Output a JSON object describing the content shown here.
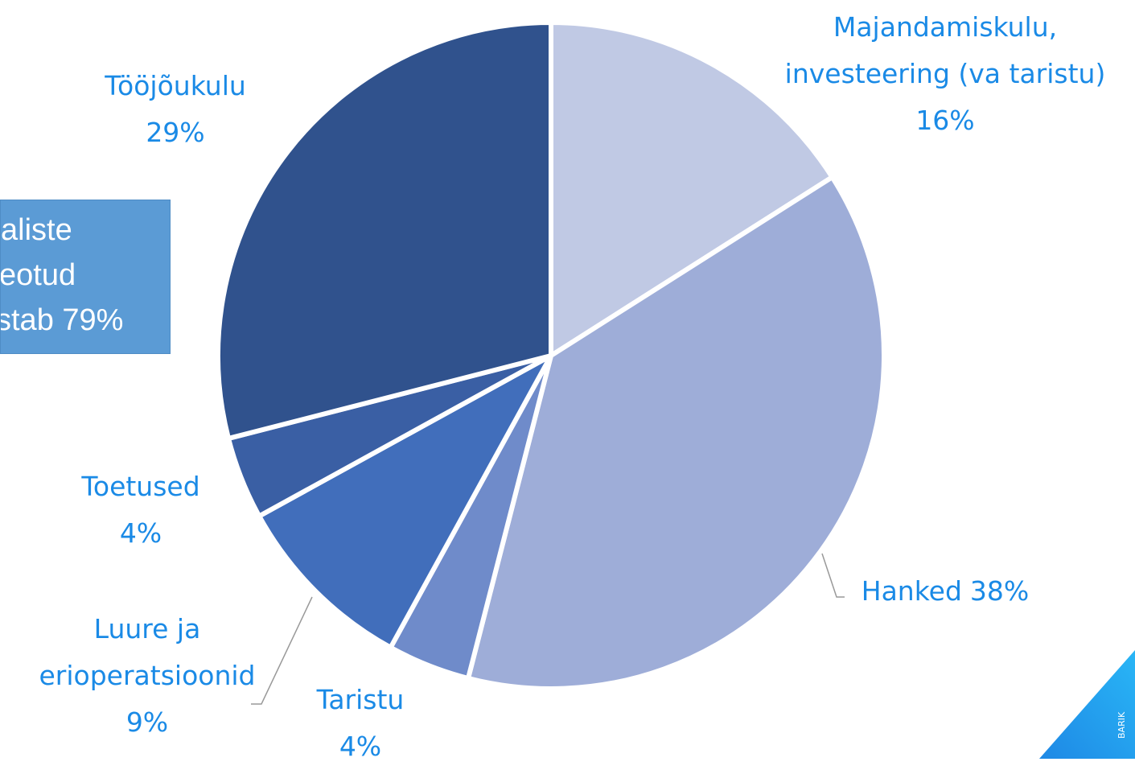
{
  "chart_data": {
    "type": "pie",
    "categories": [
      "Majandamiskulu, investeering (va taristu)",
      "Hanked",
      "Taristu",
      "Luure ja erioperatsioonid",
      "Toetused",
      "Tööjõukulu"
    ],
    "values": [
      16,
      38,
      4,
      9,
      4,
      29
    ],
    "value_labels": [
      "16%",
      "38%",
      "4%",
      "9%",
      "4%",
      "29%"
    ],
    "colors": [
      "#c0c9e4",
      "#9eadd8",
      "#6f8bca",
      "#416ebb",
      "#3a5fa4",
      "#30528d"
    ],
    "annotation": [
      "aliste",
      "eotud",
      "stab 79%"
    ],
    "logo_text": "BARIK"
  }
}
